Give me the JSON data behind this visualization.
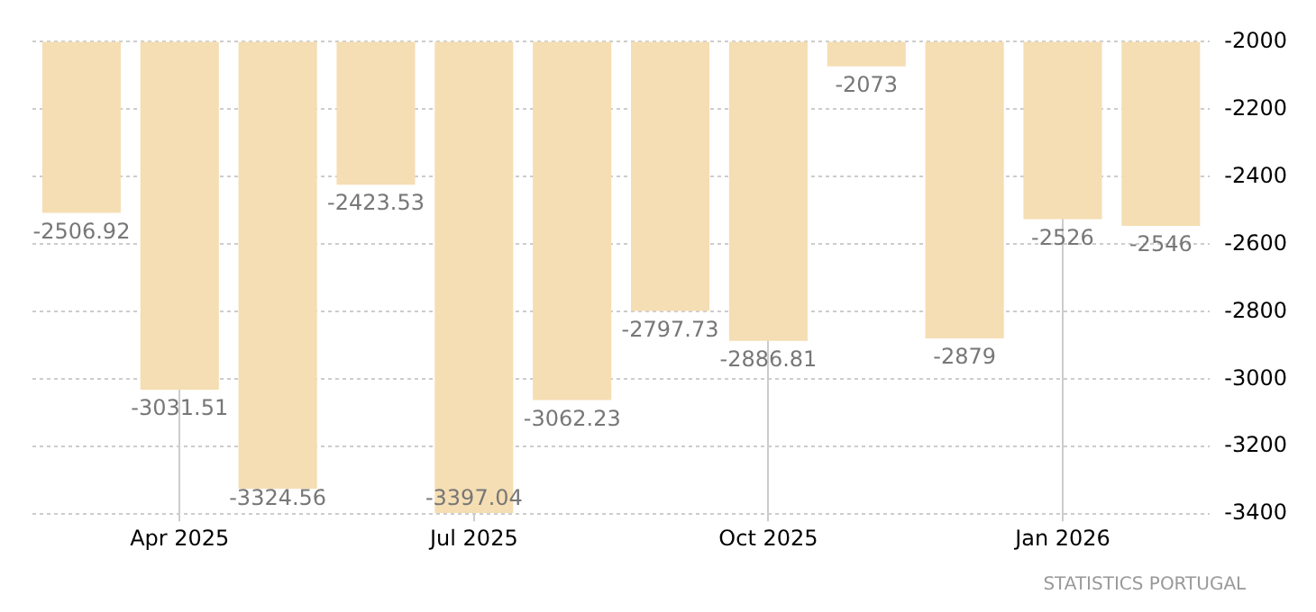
{
  "chart_data": {
    "type": "bar",
    "categories": [
      null,
      "Apr 2025",
      null,
      null,
      "Jul 2025",
      null,
      null,
      "Oct 2025",
      null,
      null,
      "Jan 2026",
      null
    ],
    "values": [
      -2506.92,
      -3031.51,
      -3324.56,
      -2423.53,
      -3397.04,
      -3062.23,
      -2797.73,
      -2886.81,
      -2073,
      -2879,
      -2526,
      -2546
    ],
    "color": "#f5deb3",
    "ylim": [
      -3400,
      -2000
    ],
    "yticks": [
      -2000,
      -2200,
      -2400,
      -2600,
      -2800,
      -3000,
      -3200,
      -3400
    ],
    "grid": true,
    "data_labels": true,
    "legend": false,
    "annotations": [
      "STATISTICS PORTUGAL"
    ]
  }
}
